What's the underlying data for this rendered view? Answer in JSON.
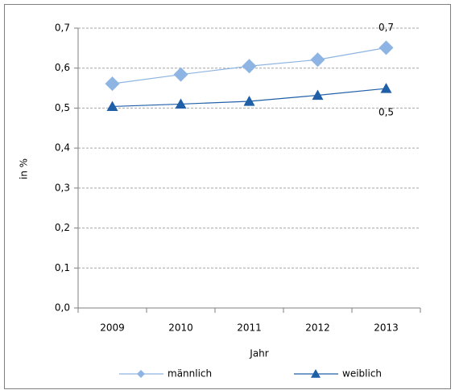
{
  "chart_data": {
    "type": "line",
    "x_label": "Jahr",
    "y_label": "in %",
    "categories": [
      "2009",
      "2010",
      "2011",
      "2012",
      "2013"
    ],
    "series": [
      {
        "name": "männlich",
        "color": "#8db4e2",
        "marker": "diamond",
        "values": [
          0.561,
          0.584,
          0.605,
          0.621,
          0.651
        ],
        "value_labels": [
          null,
          null,
          null,
          null,
          "0,7"
        ]
      },
      {
        "name": "weiblich",
        "color": "#1f5fa8",
        "marker": "triangle",
        "values": [
          0.504,
          0.51,
          0.517,
          0.532,
          0.549
        ],
        "value_labels": [
          null,
          null,
          null,
          null,
          "0,5"
        ]
      }
    ],
    "ylim": [
      0,
      0.7
    ],
    "yticks": [
      {
        "value": 0,
        "label": "0,0"
      },
      {
        "value": 0.1,
        "label": "0,1"
      },
      {
        "value": 0.2,
        "label": "0,2"
      },
      {
        "value": 0.3,
        "label": "0,3"
      },
      {
        "value": 0.4,
        "label": "0,4"
      },
      {
        "value": 0.5,
        "label": "0,5"
      },
      {
        "value": 0.6,
        "label": "0,6"
      },
      {
        "value": 0.7,
        "label": "0,7"
      }
    ],
    "grid": true,
    "legend": "bottom"
  }
}
